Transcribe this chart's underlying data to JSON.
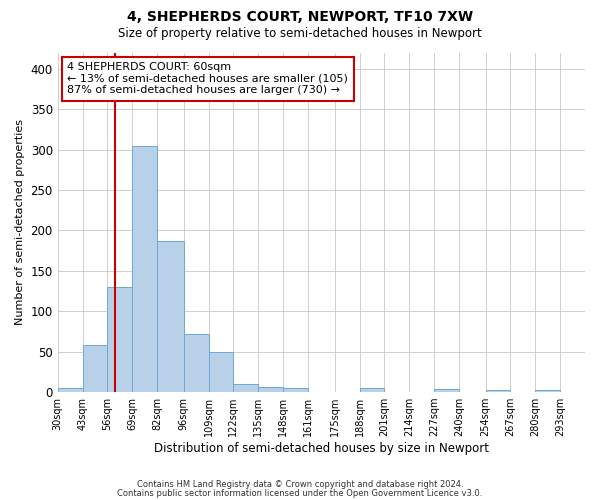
{
  "title": "4, SHEPHERDS COURT, NEWPORT, TF10 7XW",
  "subtitle": "Size of property relative to semi-detached houses in Newport",
  "xlabel": "Distribution of semi-detached houses by size in Newport",
  "ylabel": "Number of semi-detached properties",
  "footnote1": "Contains HM Land Registry data © Crown copyright and database right 2024.",
  "footnote2": "Contains public sector information licensed under the Open Government Licence v3.0.",
  "annotation_line1": "4 SHEPHERDS COURT: 60sqm",
  "annotation_line2": "← 13% of semi-detached houses are smaller (105)",
  "annotation_line3": "87% of semi-detached houses are larger (730) →",
  "property_size": 60,
  "bar_left_edges": [
    30,
    43,
    56,
    69,
    82,
    96,
    109,
    122,
    135,
    148,
    161,
    175,
    188,
    201,
    214,
    227,
    240,
    254,
    267,
    280
  ],
  "bar_widths": [
    13,
    13,
    13,
    13,
    14,
    13,
    13,
    13,
    13,
    13,
    14,
    13,
    13,
    13,
    13,
    13,
    14,
    13,
    13,
    13
  ],
  "bar_heights": [
    5,
    58,
    130,
    304,
    187,
    72,
    50,
    10,
    6,
    5,
    0,
    0,
    5,
    0,
    0,
    4,
    0,
    3,
    0,
    3
  ],
  "tick_labels": [
    "30sqm",
    "43sqm",
    "56sqm",
    "69sqm",
    "82sqm",
    "96sqm",
    "109sqm",
    "122sqm",
    "135sqm",
    "148sqm",
    "161sqm",
    "175sqm",
    "188sqm",
    "201sqm",
    "214sqm",
    "227sqm",
    "240sqm",
    "254sqm",
    "267sqm",
    "280sqm",
    "293sqm"
  ],
  "bar_color": "#b8d0e8",
  "bar_edgecolor": "#6aaad4",
  "vline_color": "#cc0000",
  "vline_x": 60,
  "ylim": [
    0,
    420
  ],
  "xlim_left": 30,
  "xlim_right": 306,
  "annotation_box_color": "#cc0000",
  "annotation_fontsize": 8,
  "grid_color": "#c8c8c8",
  "background_color": "#ffffff",
  "title_fontsize": 10,
  "subtitle_fontsize": 8.5,
  "ylabel_fontsize": 8,
  "xlabel_fontsize": 8.5,
  "footnote_fontsize": 6,
  "yticks": [
    0,
    50,
    100,
    150,
    200,
    250,
    300,
    350,
    400
  ]
}
